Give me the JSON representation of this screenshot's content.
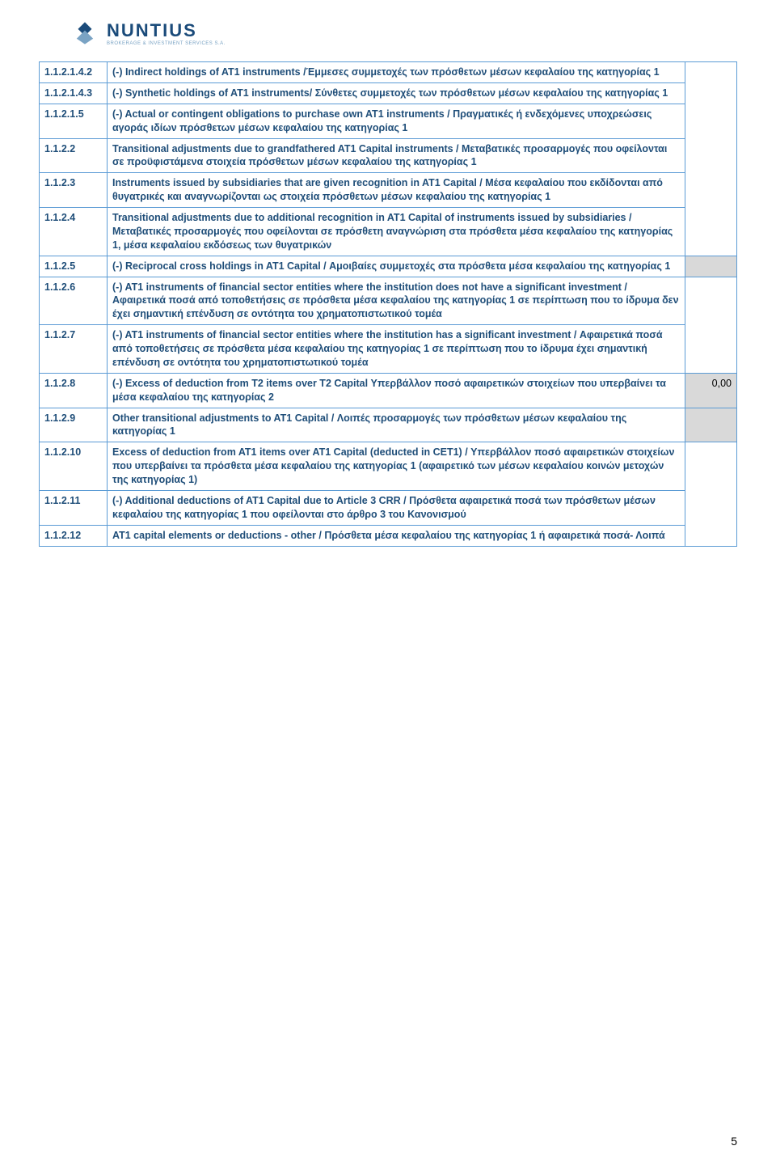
{
  "logo": {
    "name": "NUNTIUS",
    "subtitle": "BROKERAGE & INVESTMENT SERVICES S.A."
  },
  "colors": {
    "border": "#5b9bd5",
    "text": "#1f4e79",
    "gray": "#d9d9d9",
    "logo_navy": "#1b4b7a",
    "logo_light": "#7aa3c4"
  },
  "page_number": "5",
  "rows": [
    {
      "code": "1.1.2.1.4.2",
      "text": "(-) Indirect holdings of AT1 instruments /Έμμεσες συμμετοχές των πρόσθετων μέσων κεφαλαίου της κατηγορίας 1",
      "value": "",
      "merge_value_with": 0
    },
    {
      "code": "1.1.2.1.4.3",
      "text": "(-) Synthetic holdings of AT1 instruments/ Σύνθετες συμμετοχές των πρόσθετων μέσων κεφαλαίου της κατηγορίας 1",
      "value": "",
      "merge_value_with": 0
    },
    {
      "code": "1.1.2.1.5",
      "text": "(-) Actual or contingent obligations to purchase own AT1 instruments / Πραγματικές ή ενδεχόμενες υποχρεώσεις αγοράς ιδίων πρόσθετων μέσων κεφαλαίου της κατηγορίας 1",
      "value": "",
      "merge_value_with": 0
    },
    {
      "code": "1.1.2.2",
      "text": "Transitional adjustments due to grandfathered AT1 Capital instruments / Μεταβατικές προσαρμογές που οφείλονται σε προϋφιστάμενα στοιχεία πρόσθετων μέσων κεφαλαίου της κατηγορίας 1",
      "value": "",
      "merge_value_with": 0
    },
    {
      "code": "1.1.2.3",
      "text": "Instruments issued by subsidiaries that are given recognition in AT1 Capital / Μέσα κεφαλαίου που εκδίδονται από θυγατρικές και αναγνωρίζονται ως στοιχεία πρόσθετων μέσων κεφαλαίου της κατηγορίας 1",
      "value": "",
      "merge_value_with": 0
    },
    {
      "code": "1.1.2.4",
      "text": "Transitional adjustments due to additional recognition in AT1 Capital of instruments issued by subsidiaries / Μεταβατικές προσαρμογές που οφείλονται σε πρόσθετη αναγνώριση στα πρόσθετα μέσα κεφαλαίου της κατηγορίας 1, μέσα κεφαλαίου εκδόσεως των θυγατρικών",
      "value": "",
      "merge_value_with": 0
    },
    {
      "code": "1.1.2.5",
      "text": "(-) Reciprocal cross holdings in AT1 Capital / Αμοιβαίες συμμετοχές στα πρόσθετα μέσα κεφαλαίου της κατηγορίας 1",
      "value": "",
      "gray": true
    },
    {
      "code": "1.1.2.6",
      "text": "(-) AT1 instruments of financial sector entities where the institution does not have a significant investment / Αφαιρετικά ποσά από τοποθετήσεις σε πρόσθετα μέσα κεφαλαίου της κατηγορίας 1 σε περίπτωση που το ίδρυμα δεν έχει σημαντική επένδυση σε οντότητα του χρηματοπιστωτικού τομέα",
      "value": "",
      "merge_value_with": 1
    },
    {
      "code": "1.1.2.7",
      "text": "(-) AT1 instruments of financial sector entities where the institution has a significant investment / Αφαιρετικά ποσά από τοποθετήσεις σε πρόσθετα μέσα κεφαλαίου της κατηγορίας 1 σε περίπτωση που το ίδρυμα έχει σημαντική επένδυση σε οντότητα του χρηματοπιστωτικού τομέα",
      "value": "",
      "merge_value_with": 1
    },
    {
      "code": "1.1.2.8",
      "text": "(-) Excess of deduction from T2 items over T2 Capital Υπερβάλλον ποσό αφαιρετικών στοιχείων που υπερβαίνει τα μέσα κεφαλαίου της κατηγορίας 2",
      "value": "0,00",
      "gray": true
    },
    {
      "code": "1.1.2.9",
      "text": "Other transitional adjustments to AT1 Capital / Λοιπές προσαρμογές των πρόσθετων μέσων κεφαλαίου της κατηγορίας 1",
      "value": "",
      "gray": true
    },
    {
      "code": "1.1.2.10",
      "text": "Excess of deduction from AT1 items over AT1 Capital (deducted in CET1) / Υπερβάλλον ποσό αφαιρετικών στοιχείων που υπερβαίνει τα πρόσθετα μέσα κεφαλαίου της κατηγορίας 1 (αφαιρετικό των μέσων κεφαλαίου κοινών μετοχών της κατηγορίας 1)",
      "value": "",
      "merge_value_with": 2
    },
    {
      "code": "1.1.2.11",
      "text": "(-) Additional deductions of AT1 Capital due to Article 3 CRR / Πρόσθετα αφαιρετικά ποσά των πρόσθετων μέσων κεφαλαίου της κατηγορίας 1 που οφείλονται στο  άρθρο 3 του Κανονισμού",
      "value": "",
      "merge_value_with": 2
    },
    {
      "code": "1.1.2.12",
      "text": "AT1 capital elements or deductions - other / Πρόσθετα μέσα κεφαλαίου της κατηγορίας 1 ή αφαιρετικά ποσά- Λοιπά",
      "value": "",
      "merge_value_with": 2
    }
  ]
}
